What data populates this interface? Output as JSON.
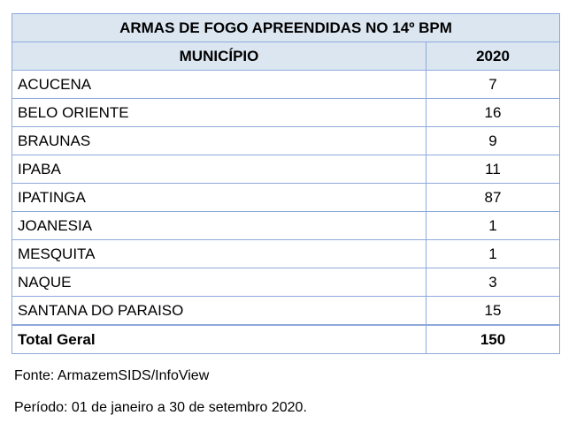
{
  "table": {
    "title": "ARMAS DE FOGO APREENDIDAS NO 14º BPM",
    "columns": [
      "MUNICÍPIO",
      "2020"
    ],
    "rows": [
      {
        "municipio": "ACUCENA",
        "valor": "7"
      },
      {
        "municipio": "BELO ORIENTE",
        "valor": "16"
      },
      {
        "municipio": "BRAUNAS",
        "valor": "9"
      },
      {
        "municipio": "IPABA",
        "valor": "11"
      },
      {
        "municipio": "IPATINGA",
        "valor": "87"
      },
      {
        "municipio": "JOANESIA",
        "valor": "1"
      },
      {
        "municipio": "MESQUITA",
        "valor": "1"
      },
      {
        "municipio": "NAQUE",
        "valor": "3"
      },
      {
        "municipio": "SANTANA DO PARAISO",
        "valor": "15"
      }
    ],
    "total": {
      "label": "Total Geral",
      "valor": "150"
    }
  },
  "notes": {
    "source": "Fonte: ArmazemSIDS/InfoView",
    "period": "Período: 01 de janeiro a 30 de setembro 2020."
  },
  "colors": {
    "header_bg": "#dce6f1",
    "border": "#8ea9db"
  }
}
